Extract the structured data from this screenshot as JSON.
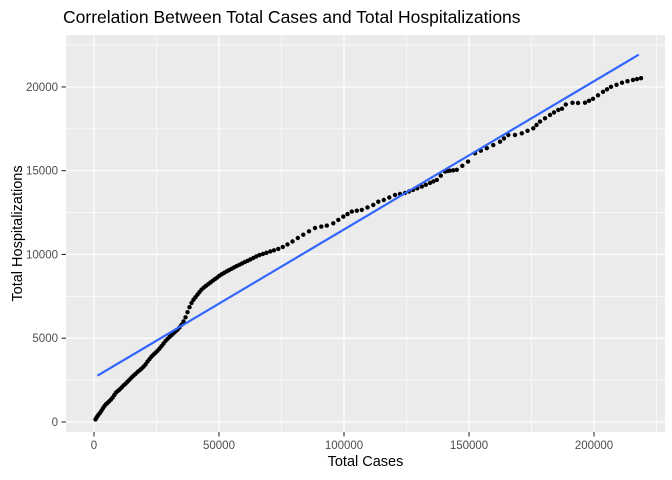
{
  "chart_data": {
    "type": "scatter",
    "title": "Correlation Between Total Cases and Total Hospitalizations",
    "xlabel": "Total Cases",
    "ylabel": "Total Hospitalizations",
    "x_ticks": [
      0,
      50000,
      100000,
      150000,
      200000
    ],
    "x_tick_labels": [
      "0",
      "50000",
      "100000",
      "150000",
      "200000"
    ],
    "x_minor_ticks": [
      25000,
      75000,
      125000,
      175000,
      225000
    ],
    "y_ticks": [
      0,
      5000,
      10000,
      15000,
      20000
    ],
    "y_tick_labels": [
      "0",
      "5000",
      "10000",
      "15000",
      "20000"
    ],
    "y_minor_ticks": [
      2500,
      7500,
      12500,
      17500,
      22500
    ],
    "x_domain": [
      -11200,
      228400
    ],
    "y_domain": [
      -600,
      23100
    ],
    "grid": true,
    "legend": "none",
    "colors": {
      "panel_background": "#EBEBEB",
      "grid": "#FFFFFF",
      "points": "#000000",
      "trend_line": "#3366FF",
      "tick_text": "#4D4D4D",
      "tick_mark": "#333333"
    },
    "trend_line": {
      "x1": 1700,
      "y1": 2790,
      "x2": 217600,
      "y2": 21900
    },
    "points": [
      [
        600,
        150
      ],
      [
        900,
        230
      ],
      [
        1300,
        330
      ],
      [
        1800,
        430
      ],
      [
        2400,
        540
      ],
      [
        3000,
        680
      ],
      [
        3600,
        820
      ],
      [
        4200,
        950
      ],
      [
        4800,
        1060
      ],
      [
        5400,
        1140
      ],
      [
        6000,
        1220
      ],
      [
        6700,
        1330
      ],
      [
        7400,
        1450
      ],
      [
        8100,
        1600
      ],
      [
        8800,
        1750
      ],
      [
        9500,
        1850
      ],
      [
        10200,
        1930
      ],
      [
        11000,
        2050
      ],
      [
        11800,
        2180
      ],
      [
        12600,
        2280
      ],
      [
        13400,
        2400
      ],
      [
        14200,
        2520
      ],
      [
        15000,
        2650
      ],
      [
        15800,
        2760
      ],
      [
        16600,
        2870
      ],
      [
        17400,
        2980
      ],
      [
        18200,
        3080
      ],
      [
        19000,
        3180
      ],
      [
        19800,
        3300
      ],
      [
        20600,
        3430
      ],
      [
        21400,
        3600
      ],
      [
        22200,
        3750
      ],
      [
        23000,
        3900
      ],
      [
        23800,
        4020
      ],
      [
        24600,
        4130
      ],
      [
        25400,
        4250
      ],
      [
        26200,
        4380
      ],
      [
        27000,
        4520
      ],
      [
        27800,
        4680
      ],
      [
        28600,
        4830
      ],
      [
        29400,
        4950
      ],
      [
        30200,
        5070
      ],
      [
        31000,
        5180
      ],
      [
        31800,
        5290
      ],
      [
        32600,
        5400
      ],
      [
        33400,
        5510
      ],
      [
        34200,
        5640
      ],
      [
        35000,
        5800
      ],
      [
        35800,
        6000
      ],
      [
        36600,
        6250
      ],
      [
        37400,
        6550
      ],
      [
        38200,
        6850
      ],
      [
        39000,
        7100
      ],
      [
        39800,
        7300
      ],
      [
        40600,
        7450
      ],
      [
        41400,
        7600
      ],
      [
        42200,
        7750
      ],
      [
        43000,
        7900
      ],
      [
        43900,
        8020
      ],
      [
        44800,
        8130
      ],
      [
        45700,
        8230
      ],
      [
        46600,
        8330
      ],
      [
        47500,
        8430
      ],
      [
        48400,
        8530
      ],
      [
        49300,
        8630
      ],
      [
        50200,
        8730
      ],
      [
        51100,
        8820
      ],
      [
        52000,
        8900
      ],
      [
        53000,
        8980
      ],
      [
        54000,
        9060
      ],
      [
        55000,
        9140
      ],
      [
        56000,
        9220
      ],
      [
        57000,
        9300
      ],
      [
        58100,
        9380
      ],
      [
        59200,
        9460
      ],
      [
        60300,
        9540
      ],
      [
        61400,
        9620
      ],
      [
        62500,
        9700
      ],
      [
        63700,
        9790
      ],
      [
        64900,
        9880
      ],
      [
        66200,
        9960
      ],
      [
        67600,
        10030
      ],
      [
        69000,
        10100
      ],
      [
        70500,
        10180
      ],
      [
        72000,
        10250
      ],
      [
        73700,
        10330
      ],
      [
        75500,
        10450
      ],
      [
        77400,
        10600
      ],
      [
        79400,
        10780
      ],
      [
        81500,
        10980
      ],
      [
        83700,
        11180
      ],
      [
        86000,
        11380
      ],
      [
        88400,
        11580
      ],
      [
        90900,
        11660
      ],
      [
        93100,
        11720
      ],
      [
        95700,
        11860
      ],
      [
        97700,
        12060
      ],
      [
        99700,
        12260
      ],
      [
        101400,
        12410
      ],
      [
        103100,
        12560
      ],
      [
        105100,
        12610
      ],
      [
        107100,
        12660
      ],
      [
        109400,
        12810
      ],
      [
        111700,
        12960
      ],
      [
        113700,
        13150
      ],
      [
        115900,
        13250
      ],
      [
        118100,
        13400
      ],
      [
        120400,
        13550
      ],
      [
        122400,
        13610
      ],
      [
        124400,
        13670
      ],
      [
        126000,
        13760
      ],
      [
        127600,
        13850
      ],
      [
        129300,
        13950
      ],
      [
        131100,
        14050
      ],
      [
        132700,
        14160
      ],
      [
        134400,
        14270
      ],
      [
        135700,
        14360
      ],
      [
        137100,
        14450
      ],
      [
        138700,
        14700
      ],
      [
        140400,
        14950
      ],
      [
        141400,
        14980
      ],
      [
        142400,
        15000
      ],
      [
        143700,
        15020
      ],
      [
        145100,
        15050
      ],
      [
        147300,
        15290
      ],
      [
        149600,
        15540
      ],
      [
        152400,
        16040
      ],
      [
        154700,
        16190
      ],
      [
        157100,
        16340
      ],
      [
        159700,
        16530
      ],
      [
        162400,
        16730
      ],
      [
        164000,
        16930
      ],
      [
        165700,
        17130
      ],
      [
        168400,
        17130
      ],
      [
        171100,
        17230
      ],
      [
        173400,
        17380
      ],
      [
        175700,
        17530
      ],
      [
        177000,
        17730
      ],
      [
        178400,
        17930
      ],
      [
        180400,
        18130
      ],
      [
        182400,
        18330
      ],
      [
        184000,
        18480
      ],
      [
        185700,
        18630
      ],
      [
        187200,
        18700
      ],
      [
        188700,
        18950
      ],
      [
        191400,
        19050
      ],
      [
        193600,
        19040
      ],
      [
        196400,
        19060
      ],
      [
        198000,
        19170
      ],
      [
        199600,
        19290
      ],
      [
        201600,
        19500
      ],
      [
        203600,
        19710
      ],
      [
        205200,
        19860
      ],
      [
        206800,
        20010
      ],
      [
        209000,
        20130
      ],
      [
        211200,
        20250
      ],
      [
        213400,
        20340
      ],
      [
        215600,
        20420
      ],
      [
        217200,
        20470
      ],
      [
        218800,
        20520
      ]
    ]
  }
}
